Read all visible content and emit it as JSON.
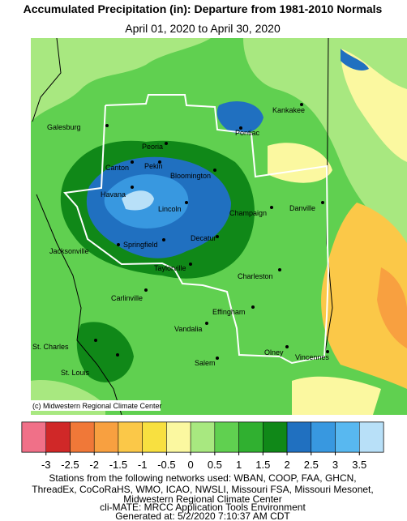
{
  "header": {
    "title": "Accumulated Precipitation (in): Departure from 1981-2010 Normals",
    "subtitle": "April 01, 2020 to April 30, 2020"
  },
  "map": {
    "cities": [
      "Galesburg",
      "Peoria",
      "Kankakee",
      "Pontiac",
      "Canton",
      "Pekin",
      "Bloomington",
      "Havana",
      "Lincoln",
      "Champaign",
      "Danville",
      "Decatur",
      "Springfield",
      "Jacksonville",
      "Taylorville",
      "Charleston",
      "Carlinville",
      "Effingham",
      "Vandalia",
      "St. Charles",
      "Olney",
      "Vincennes",
      "St. Louis",
      "Salem"
    ],
    "credit": "(c) Midwestern Regional Climate Center"
  },
  "legend": {
    "colors": [
      "#f07088",
      "#d02828",
      "#f07838",
      "#f8a040",
      "#fbc848",
      "#f8e040",
      "#fbf8a0",
      "#a8e880",
      "#60d050",
      "#30b030",
      "#108818",
      "#2070c0",
      "#3898e0",
      "#58b8f0",
      "#b8e0f8"
    ],
    "ticks": [
      -3,
      -2.5,
      -2,
      -1.5,
      -1,
      -0.5,
      0,
      0.5,
      1,
      1.5,
      2,
      2.5,
      3,
      3.5
    ]
  },
  "footer": [
    "Stations from the following networks used: WBAN, COOP, FAA, GHCN,",
    "ThreadEx, CoCoRaHS, WMO, ICAO, NWSLI, Missouri FSA, Missouri Mesonet,",
    "Midwestern Regional Climate Center",
    "cli-MATE: MRCC Application Tools Environment",
    "Generated at: 5/2/2020 7:10:37 AM CDT"
  ]
}
